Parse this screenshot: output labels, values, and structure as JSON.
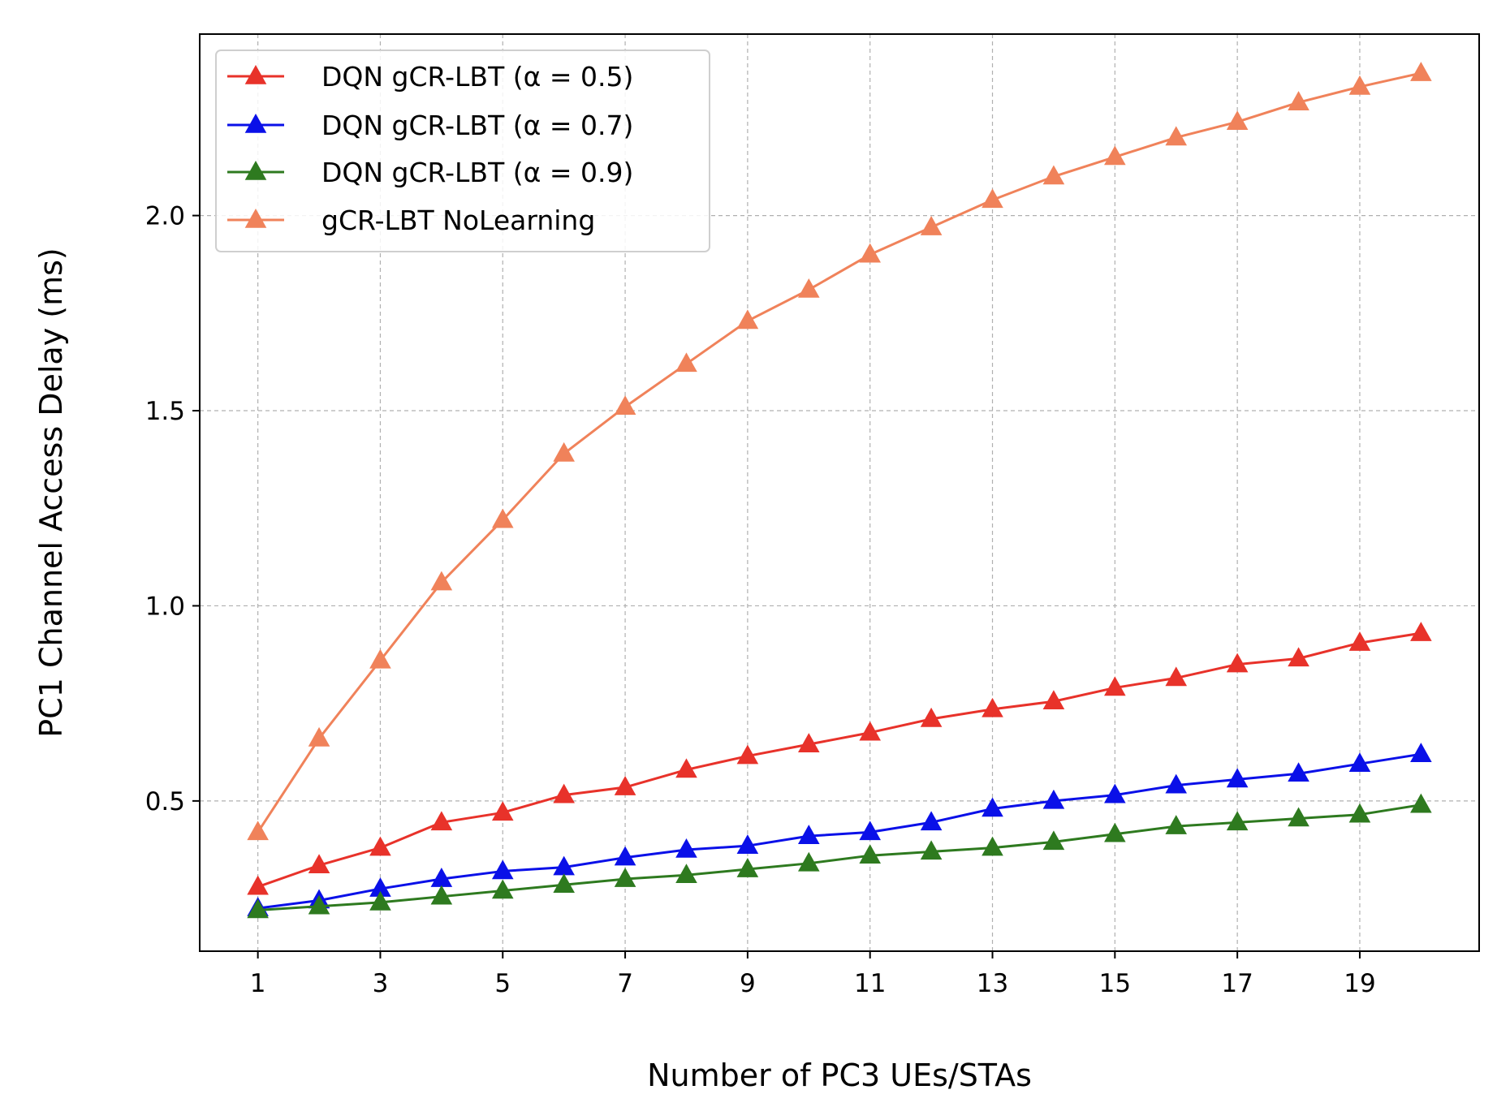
{
  "chart_data": {
    "type": "line",
    "title": "",
    "xlabel": "Number of PC3 UEs/STAs",
    "ylabel": "PC1 Channel Access Delay (ms)",
    "xlim": [
      0.05,
      20.95
    ],
    "ylim": [
      0.115,
      2.465
    ],
    "xticks": [
      1,
      3,
      5,
      7,
      9,
      11,
      13,
      15,
      17,
      19
    ],
    "yticks": [
      0.5,
      1.0,
      1.5,
      2.0
    ],
    "ytick_labels": [
      "0.5",
      "1.0",
      "1.5",
      "2.0"
    ],
    "grid": true,
    "legend_position": "top-left",
    "marker": "triangle",
    "x": [
      1,
      2,
      3,
      4,
      5,
      6,
      7,
      8,
      9,
      10,
      11,
      12,
      13,
      14,
      15,
      16,
      17,
      18,
      19,
      20
    ],
    "series": [
      {
        "name": "DQN gCR-LBT (α = 0.5)",
        "color": "#e8322a",
        "values": [
          0.28,
          0.335,
          0.38,
          0.445,
          0.47,
          0.515,
          0.535,
          0.58,
          0.615,
          0.645,
          0.675,
          0.71,
          0.735,
          0.755,
          0.79,
          0.815,
          0.85,
          0.865,
          0.905,
          0.93
        ]
      },
      {
        "name": "DQN gCR-LBT (α = 0.7)",
        "color": "#0a10e8",
        "values": [
          0.225,
          0.245,
          0.275,
          0.3,
          0.32,
          0.33,
          0.355,
          0.375,
          0.385,
          0.41,
          0.42,
          0.445,
          0.48,
          0.5,
          0.515,
          0.54,
          0.555,
          0.57,
          0.595,
          0.62
        ]
      },
      {
        "name": "DQN gCR-LBT (α = 0.9)",
        "color": "#2e7a1f",
        "values": [
          0.22,
          0.23,
          0.24,
          0.255,
          0.27,
          0.285,
          0.3,
          0.31,
          0.325,
          0.34,
          0.36,
          0.37,
          0.38,
          0.395,
          0.415,
          0.435,
          0.445,
          0.455,
          0.465,
          0.49
        ]
      },
      {
        "name": "gCR-LBT NoLearning",
        "color": "#f0825a",
        "values": [
          0.42,
          0.66,
          0.86,
          1.06,
          1.22,
          1.39,
          1.51,
          1.62,
          1.73,
          1.81,
          1.9,
          1.97,
          2.04,
          2.1,
          2.15,
          2.2,
          2.24,
          2.29,
          2.33,
          2.365
        ]
      }
    ]
  }
}
